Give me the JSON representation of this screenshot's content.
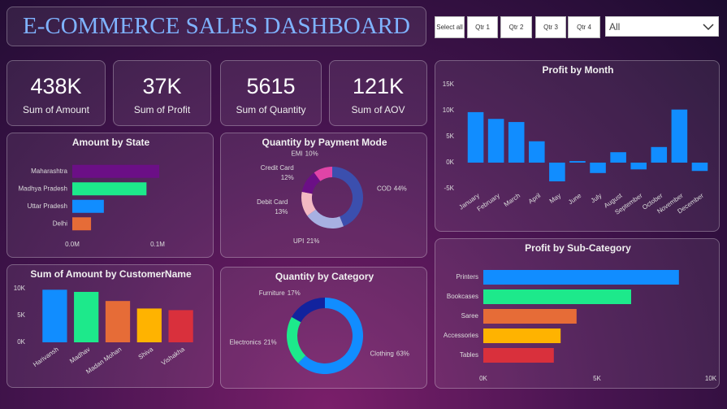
{
  "header": {
    "title": "E-COMMERCE SALES DASHBOARD"
  },
  "slicers": {
    "buttons": [
      "Select all",
      "Qtr 1",
      "Qtr 2",
      "Qtr 3",
      "Qtr 4"
    ],
    "dropdown": "All"
  },
  "cards": [
    {
      "value": "438K",
      "label": "Sum of Amount"
    },
    {
      "value": "37K",
      "label": "Sum of Profit"
    },
    {
      "value": "5615",
      "label": "Sum of Quantity"
    },
    {
      "value": "121K",
      "label": "Sum of AOV"
    }
  ],
  "chart_data": [
    {
      "type": "barh",
      "title": "Amount by State",
      "categories": [
        "Maharashtra",
        "Madhya Pradesh",
        "Uttar Pradesh",
        "Delhi"
      ],
      "values": [
        102000,
        87000,
        37000,
        22000
      ],
      "colors": [
        "#6b0f86",
        "#1de98b",
        "#118dff",
        "#e66c37"
      ],
      "xlim": [
        0,
        110000
      ],
      "xticks": [
        {
          "value": 0,
          "label": "0.0M"
        },
        {
          "value": 100000,
          "label": "0.1M"
        }
      ]
    },
    {
      "type": "donut",
      "title": "Quantity by Payment Mode",
      "categories": [
        "COD",
        "UPI",
        "Debit Card",
        "Credit Card",
        "EMI"
      ],
      "values": [
        44,
        21,
        13,
        12,
        10
      ],
      "value_labels": [
        "44%",
        "21%",
        "13%",
        "12%",
        "10%"
      ],
      "colors": [
        "#3b4fae",
        "#a7b0e2",
        "#f3b9c3",
        "#6b0f86",
        "#e044a7"
      ]
    },
    {
      "type": "bar",
      "title": "Sum of Amount by CustomerName",
      "categories": [
        "Harivansh",
        "Madhav",
        "Madan Mohan",
        "Shiva",
        "Vishakha"
      ],
      "values": [
        9800,
        9400,
        7700,
        6300,
        6000
      ],
      "colors": [
        "#118dff",
        "#1de98b",
        "#e66c37",
        "#ffb300",
        "#d9303c"
      ],
      "ylim": [
        0,
        10500
      ],
      "yticks": [
        {
          "value": 0,
          "label": "0K"
        },
        {
          "value": 5000,
          "label": "5K"
        },
        {
          "value": 10000,
          "label": "10K"
        }
      ]
    },
    {
      "type": "donut",
      "title": "Quantity by Category",
      "categories": [
        "Clothing",
        "Electronics",
        "Furniture"
      ],
      "values": [
        63,
        21,
        17
      ],
      "value_labels": [
        "63%",
        "21%",
        "17%"
      ],
      "colors": [
        "#118dff",
        "#1de98b",
        "#12239e"
      ]
    },
    {
      "type": "bar",
      "title": "Profit by Month",
      "categories": [
        "January",
        "February",
        "March",
        "April",
        "May",
        "June",
        "July",
        "August",
        "September",
        "October",
        "November",
        "December"
      ],
      "values": [
        9700,
        8400,
        7800,
        4100,
        -3600,
        300,
        -2000,
        2000,
        -1300,
        3000,
        10200,
        -1600
      ],
      "color": "#118dff",
      "ylim": [
        -5000,
        15000
      ],
      "yticks": [
        {
          "value": -5000,
          "label": "-5K"
        },
        {
          "value": 0,
          "label": "0K"
        },
        {
          "value": 5000,
          "label": "5K"
        },
        {
          "value": 10000,
          "label": "10K"
        },
        {
          "value": 15000,
          "label": "15K"
        }
      ]
    },
    {
      "type": "barh",
      "title": "Profit by Sub-Category",
      "categories": [
        "Printers",
        "Bookcases",
        "Saree",
        "Accessories",
        "Tables"
      ],
      "values": [
        8600,
        6500,
        4100,
        3400,
        3100
      ],
      "colors": [
        "#118dff",
        "#1de98b",
        "#e66c37",
        "#ffb300",
        "#d9303c"
      ],
      "xlim": [
        0,
        10000
      ],
      "xticks": [
        {
          "value": 0,
          "label": "0K"
        },
        {
          "value": 5000,
          "label": "5K"
        },
        {
          "value": 10000,
          "label": "10K"
        }
      ]
    }
  ]
}
